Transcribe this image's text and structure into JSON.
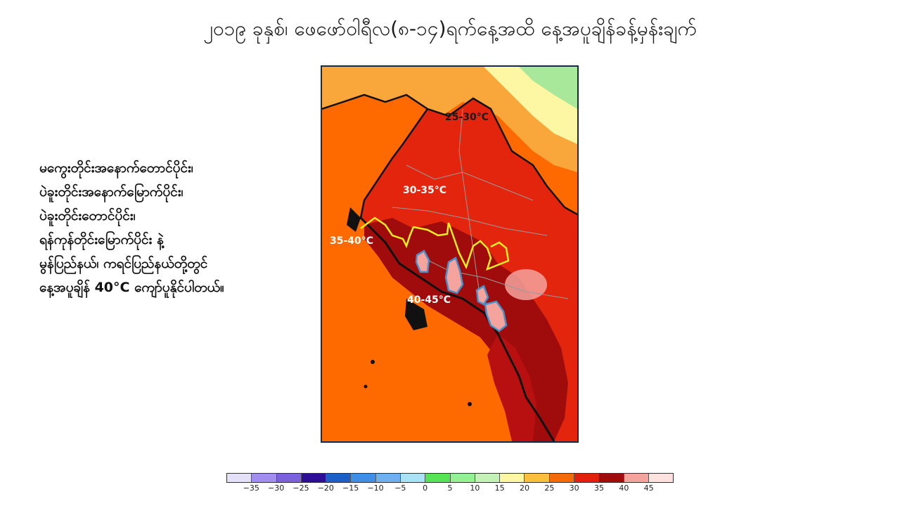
{
  "title": "၂၀၁၉ ခုနှစ်၊ ဖေဖော်ဝါရီလ(၈-၁၄)ရက်နေ့အထိ နေ့အပူချိန်ခန့်မှန်းချက်",
  "description_lines": [
    "မကွေးတိုင်းအနောက်တောင်ပိုင်း၊",
    "ပဲခူးတိုင်းအနောက်မြောက်ပိုင်း၊",
    "ပဲခူးတိုင်းတောင်ပိုင်း၊",
    "ရန်ကုန်တိုင်းမြောက်ပိုင်း နဲ့",
    "မွန်ပြည်နယ်၊ ကရင်ပြည်နယ်တို့တွင်",
    "နေ့အပူချိန် 40°C ကျော်ပူနိုင်ပါတယ်။"
  ],
  "map": {
    "labels": {
      "north": "25-30°C",
      "central": "30-35°C",
      "west": "35-40°C",
      "south": "40-45°C"
    },
    "contour_colors": {
      "yellow": "#f5ee1e",
      "blue": "#4a90c8"
    }
  },
  "colorbar": {
    "ticks": [
      "−35",
      "−30",
      "−25",
      "−20",
      "−15",
      "−10",
      "−5",
      "0",
      "5",
      "10",
      "15",
      "20",
      "25",
      "30",
      "35",
      "40",
      "45"
    ],
    "colors": [
      "#e3e0f7",
      "#a28ef0",
      "#7b62dc",
      "#2c0f96",
      "#1b5fc7",
      "#3f8fe8",
      "#6fb0f0",
      "#a9e2f5",
      "#56e356",
      "#93f093",
      "#c4f2b6",
      "#fdf6a3",
      "#f9bf3d",
      "#f56b0a",
      "#e3200b",
      "#a00b0b",
      "#f4a39d",
      "#fde2e0"
    ]
  }
}
